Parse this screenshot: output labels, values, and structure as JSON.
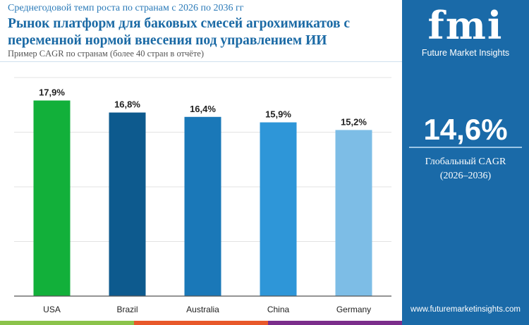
{
  "header": {
    "subtitle": "Среднегодовой темп роста по странам с 2026 по 2036 гг",
    "title": "Рынок платформ для баковых смесей агрохимикатов с переменной нормой внесения под управлением ИИ",
    "note": "Пример CAGR по странам (более 40 стран в отчёте)"
  },
  "chart_data": {
    "type": "bar",
    "categories": [
      "USA",
      "Brazil",
      "Australia",
      "China",
      "Germany"
    ],
    "values": [
      17.9,
      16.8,
      16.4,
      15.9,
      15.2
    ],
    "labels": [
      "17,9%",
      "16,8%",
      "16,4%",
      "15,9%",
      "15,2%"
    ],
    "colors": [
      "#12b03a",
      "#0d5a8e",
      "#1a78b8",
      "#2e96d8",
      "#7dbde6"
    ],
    "ylim": [
      0,
      20
    ],
    "grid": true,
    "title": "",
    "xlabel": "",
    "ylabel": ""
  },
  "panel": {
    "logo": "fmi",
    "logo_sub": "Future Market Insights",
    "global_value": "14,6%",
    "global_label": "Глобальный CAGR",
    "global_period": "(2026–2036)",
    "url": "www.futuremarketinsights.com"
  },
  "stripe_colors": [
    "#8bc34a",
    "#e8582a",
    "#7b2d8b"
  ]
}
